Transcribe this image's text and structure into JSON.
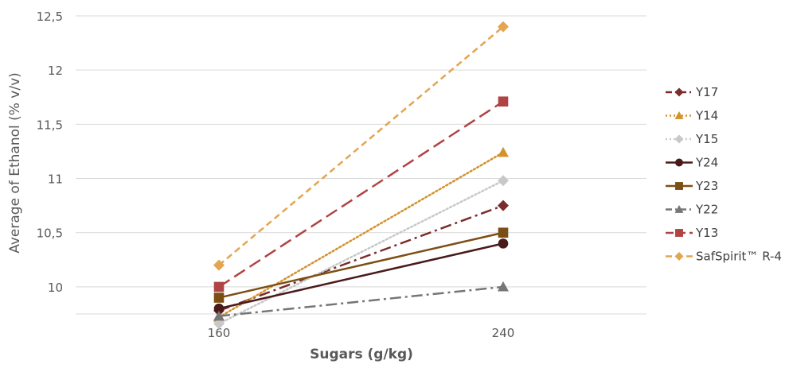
{
  "chart_data": {
    "type": "line",
    "xlabel": "Sugars (g/kg)",
    "ylabel": "Average of Ethanol (% v/v)",
    "categories": [
      "160",
      "240"
    ],
    "y_ticks": [
      "10",
      "10,5",
      "11",
      "11,5",
      "12",
      "12,5"
    ],
    "y_tick_values": [
      10,
      10.5,
      11,
      11.5,
      12,
      12.5
    ],
    "ylim": [
      9.75,
      12.5
    ],
    "grid": "horizontal",
    "legend_position": "right",
    "series": [
      {
        "name": "Y17",
        "values": [
          9.78,
          10.75
        ],
        "color": "#7B2C2C",
        "dash": "dashdot",
        "marker": "diamond"
      },
      {
        "name": "Y14",
        "values": [
          9.72,
          11.24
        ],
        "color": "#D3922E",
        "dash": "dot",
        "marker": "triangle"
      },
      {
        "name": "Y15",
        "values": [
          9.66,
          10.98
        ],
        "color": "#C8C8C8",
        "dash": "dot",
        "marker": "diamond"
      },
      {
        "name": "Y24",
        "values": [
          9.8,
          10.4
        ],
        "color": "#4A1A1A",
        "dash": "solid",
        "marker": "circle"
      },
      {
        "name": "Y23",
        "values": [
          9.9,
          10.5
        ],
        "color": "#7B4F14",
        "dash": "solid",
        "marker": "square"
      },
      {
        "name": "Y22",
        "values": [
          9.73,
          10.0
        ],
        "color": "#767676",
        "dash": "dashdot",
        "marker": "triangle"
      },
      {
        "name": "Y13",
        "values": [
          10.0,
          11.71
        ],
        "color": "#B04444",
        "dash": "longdash",
        "marker": "square"
      },
      {
        "name": "SafSpirit™ R-4",
        "values": [
          10.2,
          12.4
        ],
        "color": "#E3A550",
        "dash": "dash",
        "marker": "diamond"
      }
    ]
  }
}
